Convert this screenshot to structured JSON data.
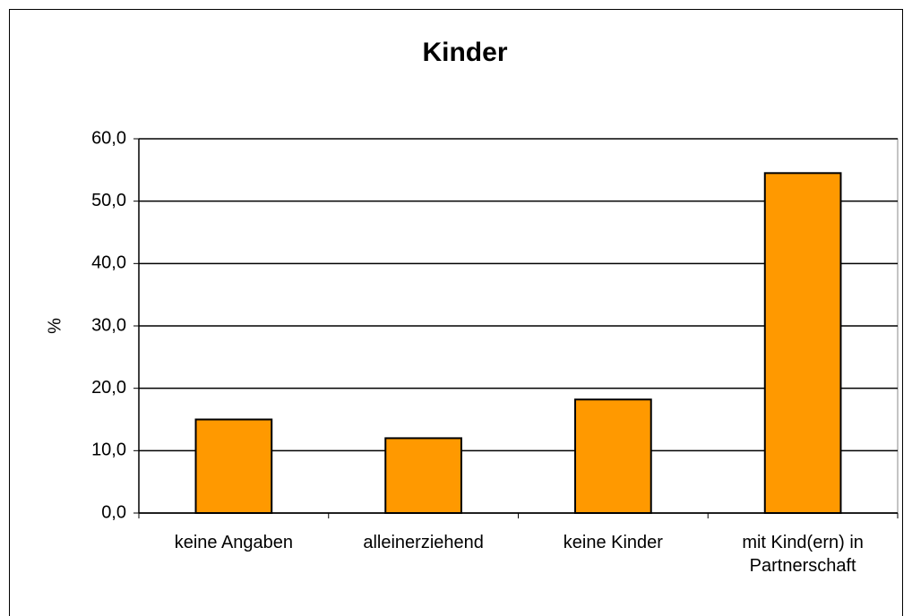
{
  "chart_data": {
    "type": "bar",
    "title": "Kinder",
    "ylabel": "%",
    "categories": [
      "keine Angaben",
      "alleinerziehend",
      "keine Kinder",
      "mit Kind(ern) in Partnerschaft"
    ],
    "values": [
      15.0,
      12.0,
      18.2,
      54.5
    ],
    "color": "#ff9900",
    "ylim": [
      0,
      60
    ],
    "yticks": [
      {
        "value": 0,
        "label": "0,0"
      },
      {
        "value": 10,
        "label": "10,0"
      },
      {
        "value": 20,
        "label": "20,0"
      },
      {
        "value": 30,
        "label": "30,0"
      },
      {
        "value": 40,
        "label": "40,0"
      },
      {
        "value": 50,
        "label": "50,0"
      },
      {
        "value": 60,
        "label": "60,0"
      }
    ],
    "grid": true
  }
}
